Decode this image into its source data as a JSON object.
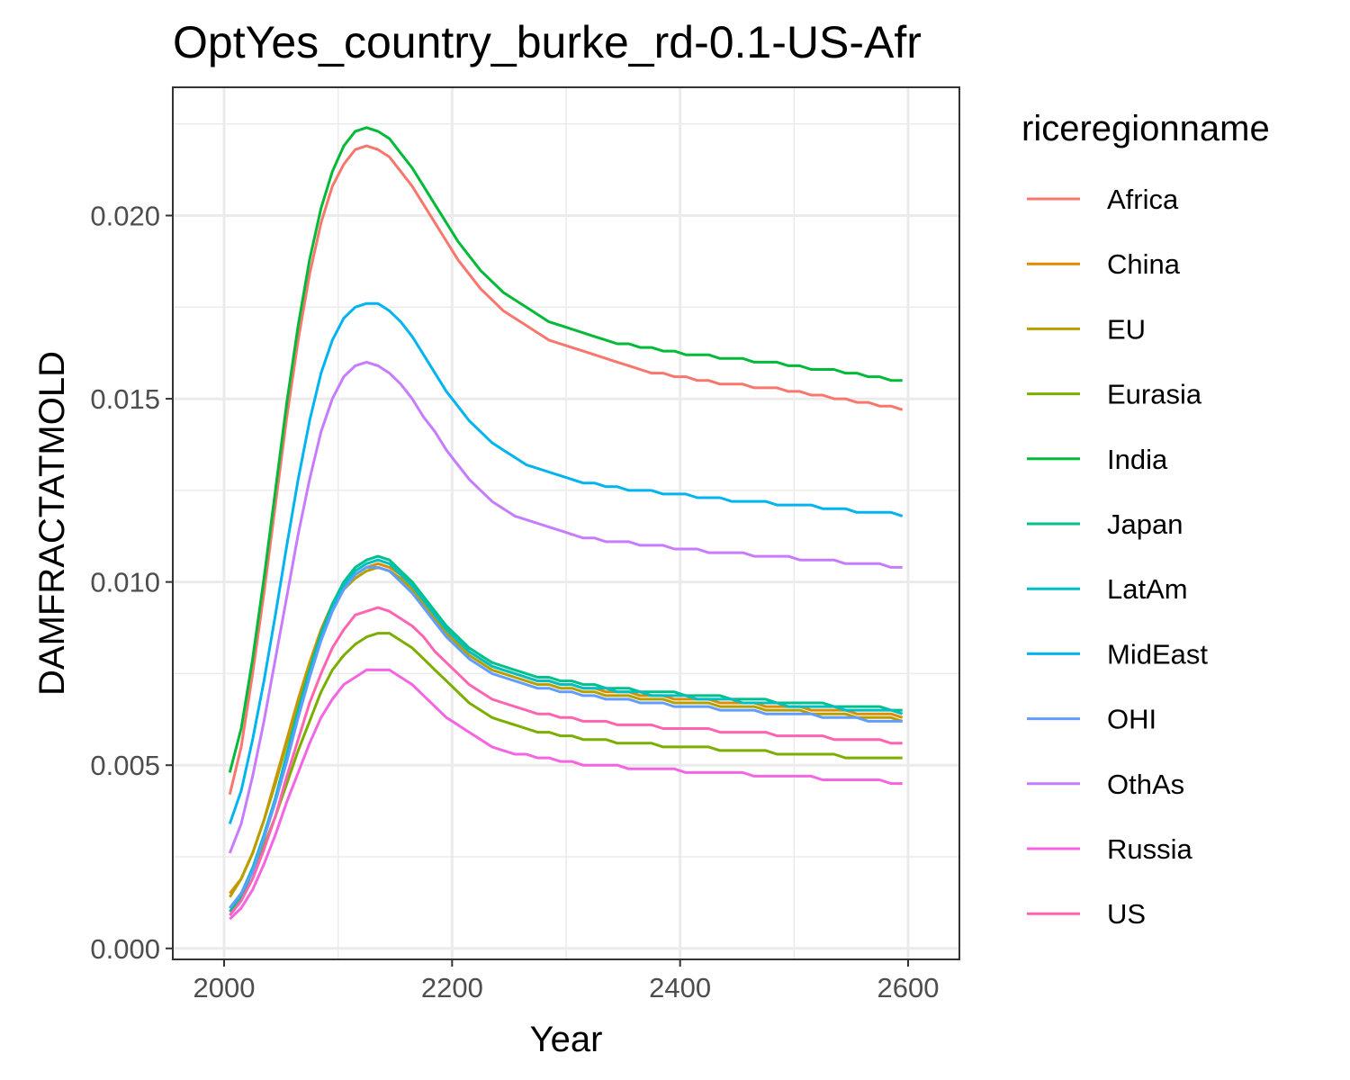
{
  "chart_data": {
    "type": "line",
    "title": "OptYes_country_burke_rd-0.1-US-Afr",
    "xlabel": "Year",
    "ylabel": "DAMFRACTATMOLD",
    "xlim": [
      1955,
      2645
    ],
    "ylim": [
      -0.0003,
      0.0235
    ],
    "x_ticks": [
      2000,
      2200,
      2400,
      2600
    ],
    "x_tick_labels": [
      "2000",
      "2200",
      "2400",
      "2600"
    ],
    "y_ticks": [
      0.0,
      0.005,
      0.01,
      0.015,
      0.02
    ],
    "y_tick_labels": [
      "0.000",
      "0.005",
      "0.010",
      "0.015",
      "0.020"
    ],
    "grid": true,
    "legend": {
      "title": "riceregionname",
      "placement": "right"
    },
    "x": [
      2005,
      2015,
      2025,
      2035,
      2045,
      2055,
      2065,
      2075,
      2085,
      2095,
      2105,
      2115,
      2125,
      2135,
      2145,
      2155,
      2165,
      2175,
      2185,
      2195,
      2205,
      2215,
      2225,
      2235,
      2245,
      2255,
      2265,
      2275,
      2285,
      2295,
      2305,
      2315,
      2325,
      2335,
      2345,
      2355,
      2365,
      2375,
      2385,
      2395,
      2405,
      2415,
      2425,
      2435,
      2445,
      2455,
      2465,
      2475,
      2485,
      2495,
      2505,
      2515,
      2525,
      2535,
      2545,
      2555,
      2565,
      2575,
      2585,
      2595
    ],
    "series": [
      {
        "name": "Africa",
        "color": "#F8766D",
        "values": [
          0.0042,
          0.0055,
          0.0075,
          0.0097,
          0.0121,
          0.0145,
          0.0166,
          0.0184,
          0.0198,
          0.0208,
          0.0214,
          0.0218,
          0.0219,
          0.0218,
          0.0216,
          0.0212,
          0.0208,
          0.0203,
          0.0198,
          0.0193,
          0.0188,
          0.0184,
          0.018,
          0.0177,
          0.0174,
          0.0172,
          0.017,
          0.0168,
          0.0166,
          0.0165,
          0.0164,
          0.0163,
          0.0162,
          0.0161,
          0.016,
          0.0159,
          0.0158,
          0.0157,
          0.0157,
          0.0156,
          0.0156,
          0.0155,
          0.0155,
          0.0154,
          0.0154,
          0.0154,
          0.0153,
          0.0153,
          0.0153,
          0.0152,
          0.0152,
          0.0151,
          0.0151,
          0.015,
          0.015,
          0.0149,
          0.0149,
          0.0148,
          0.0148,
          0.0147
        ]
      },
      {
        "name": "China",
        "color": "#DE8C00",
        "values": [
          0.0015,
          0.0019,
          0.0026,
          0.0035,
          0.0046,
          0.0057,
          0.0068,
          0.0078,
          0.0087,
          0.0094,
          0.0099,
          0.0102,
          0.0104,
          0.0105,
          0.0104,
          0.0102,
          0.0099,
          0.0095,
          0.0091,
          0.0087,
          0.0084,
          0.0081,
          0.0079,
          0.0077,
          0.0076,
          0.0075,
          0.0074,
          0.0073,
          0.0073,
          0.0072,
          0.0072,
          0.0071,
          0.0071,
          0.007,
          0.007,
          0.007,
          0.0069,
          0.0069,
          0.0069,
          0.0068,
          0.0068,
          0.0068,
          0.0068,
          0.0067,
          0.0067,
          0.0067,
          0.0067,
          0.0066,
          0.0066,
          0.0066,
          0.0066,
          0.0065,
          0.0065,
          0.0065,
          0.0065,
          0.0064,
          0.0064,
          0.0064,
          0.0064,
          0.0063
        ]
      },
      {
        "name": "EU",
        "color": "#B79F00",
        "values": [
          0.0014,
          0.0019,
          0.0026,
          0.0035,
          0.0045,
          0.0056,
          0.0067,
          0.0077,
          0.0086,
          0.0093,
          0.0098,
          0.0101,
          0.0103,
          0.0104,
          0.0103,
          0.0101,
          0.0098,
          0.0094,
          0.009,
          0.0086,
          0.0083,
          0.008,
          0.0078,
          0.0076,
          0.0075,
          0.0074,
          0.0073,
          0.0072,
          0.0072,
          0.0071,
          0.0071,
          0.007,
          0.007,
          0.0069,
          0.0069,
          0.0069,
          0.0068,
          0.0068,
          0.0068,
          0.0067,
          0.0067,
          0.0067,
          0.0067,
          0.0066,
          0.0066,
          0.0066,
          0.0066,
          0.0065,
          0.0065,
          0.0065,
          0.0065,
          0.0064,
          0.0064,
          0.0064,
          0.0064,
          0.0063,
          0.0063,
          0.0063,
          0.0063,
          0.0062
        ]
      },
      {
        "name": "Eurasia",
        "color": "#7CAE00",
        "values": [
          0.0011,
          0.0015,
          0.0021,
          0.0028,
          0.0036,
          0.0045,
          0.0054,
          0.0062,
          0.007,
          0.0076,
          0.008,
          0.0083,
          0.0085,
          0.0086,
          0.0086,
          0.0084,
          0.0082,
          0.0079,
          0.0076,
          0.0073,
          0.007,
          0.0067,
          0.0065,
          0.0063,
          0.0062,
          0.0061,
          0.006,
          0.0059,
          0.0059,
          0.0058,
          0.0058,
          0.0057,
          0.0057,
          0.0057,
          0.0056,
          0.0056,
          0.0056,
          0.0056,
          0.0055,
          0.0055,
          0.0055,
          0.0055,
          0.0055,
          0.0054,
          0.0054,
          0.0054,
          0.0054,
          0.0054,
          0.0053,
          0.0053,
          0.0053,
          0.0053,
          0.0053,
          0.0053,
          0.0052,
          0.0052,
          0.0052,
          0.0052,
          0.0052,
          0.0052
        ]
      },
      {
        "name": "India",
        "color": "#00BA38",
        "values": [
          0.0048,
          0.006,
          0.0079,
          0.0101,
          0.0125,
          0.0149,
          0.017,
          0.0188,
          0.0202,
          0.0212,
          0.0219,
          0.0223,
          0.0224,
          0.0223,
          0.0221,
          0.0217,
          0.0213,
          0.0208,
          0.0203,
          0.0198,
          0.0193,
          0.0189,
          0.0185,
          0.0182,
          0.0179,
          0.0177,
          0.0175,
          0.0173,
          0.0171,
          0.017,
          0.0169,
          0.0168,
          0.0167,
          0.0166,
          0.0165,
          0.0165,
          0.0164,
          0.0164,
          0.0163,
          0.0163,
          0.0162,
          0.0162,
          0.0162,
          0.0161,
          0.0161,
          0.0161,
          0.016,
          0.016,
          0.016,
          0.0159,
          0.0159,
          0.0158,
          0.0158,
          0.0158,
          0.0157,
          0.0157,
          0.0156,
          0.0156,
          0.0155,
          0.0155
        ]
      },
      {
        "name": "Japan",
        "color": "#00C08B",
        "values": [
          0.001,
          0.0014,
          0.0021,
          0.003,
          0.0041,
          0.0053,
          0.0065,
          0.0076,
          0.0086,
          0.0094,
          0.01,
          0.0104,
          0.0106,
          0.0107,
          0.0106,
          0.0103,
          0.01,
          0.0096,
          0.0092,
          0.0088,
          0.0085,
          0.0082,
          0.008,
          0.0078,
          0.0077,
          0.0076,
          0.0075,
          0.0074,
          0.0074,
          0.0073,
          0.0073,
          0.0072,
          0.0072,
          0.0071,
          0.0071,
          0.0071,
          0.007,
          0.007,
          0.007,
          0.007,
          0.0069,
          0.0069,
          0.0069,
          0.0069,
          0.0068,
          0.0068,
          0.0068,
          0.0068,
          0.0067,
          0.0067,
          0.0067,
          0.0067,
          0.0067,
          0.0066,
          0.0066,
          0.0066,
          0.0066,
          0.0066,
          0.0065,
          0.0065
        ]
      },
      {
        "name": "LatAm",
        "color": "#00BFC4",
        "values": [
          0.0011,
          0.0015,
          0.0022,
          0.0031,
          0.0041,
          0.0053,
          0.0064,
          0.0075,
          0.0085,
          0.0093,
          0.0099,
          0.0103,
          0.0105,
          0.0106,
          0.0105,
          0.0102,
          0.0099,
          0.0095,
          0.0091,
          0.0087,
          0.0084,
          0.0081,
          0.0079,
          0.0077,
          0.0076,
          0.0075,
          0.0074,
          0.0073,
          0.0073,
          0.0072,
          0.0072,
          0.0071,
          0.0071,
          0.0071,
          0.007,
          0.007,
          0.007,
          0.0069,
          0.0069,
          0.0069,
          0.0069,
          0.0068,
          0.0068,
          0.0068,
          0.0068,
          0.0067,
          0.0067,
          0.0067,
          0.0067,
          0.0066,
          0.0066,
          0.0066,
          0.0066,
          0.0066,
          0.0065,
          0.0065,
          0.0065,
          0.0065,
          0.0065,
          0.0064
        ]
      },
      {
        "name": "MidEast",
        "color": "#00B4EF",
        "values": [
          0.0034,
          0.0043,
          0.0057,
          0.0073,
          0.0091,
          0.011,
          0.0128,
          0.0144,
          0.0157,
          0.0166,
          0.0172,
          0.0175,
          0.0176,
          0.0176,
          0.0174,
          0.0171,
          0.0167,
          0.0162,
          0.0157,
          0.0152,
          0.0148,
          0.0144,
          0.0141,
          0.0138,
          0.0136,
          0.0134,
          0.0132,
          0.0131,
          0.013,
          0.0129,
          0.0128,
          0.0127,
          0.0127,
          0.0126,
          0.0126,
          0.0125,
          0.0125,
          0.0125,
          0.0124,
          0.0124,
          0.0124,
          0.0123,
          0.0123,
          0.0123,
          0.0122,
          0.0122,
          0.0122,
          0.0122,
          0.0121,
          0.0121,
          0.0121,
          0.0121,
          0.012,
          0.012,
          0.012,
          0.0119,
          0.0119,
          0.0119,
          0.0119,
          0.0118
        ]
      },
      {
        "name": "OHI",
        "color": "#619CFF",
        "values": [
          0.0011,
          0.0015,
          0.0021,
          0.003,
          0.004,
          0.0051,
          0.0063,
          0.0074,
          0.0084,
          0.0092,
          0.0098,
          0.0102,
          0.0104,
          0.0104,
          0.0103,
          0.01,
          0.0097,
          0.0093,
          0.0089,
          0.0085,
          0.0082,
          0.0079,
          0.0077,
          0.0075,
          0.0074,
          0.0073,
          0.0072,
          0.0071,
          0.0071,
          0.007,
          0.007,
          0.0069,
          0.0069,
          0.0068,
          0.0068,
          0.0068,
          0.0067,
          0.0067,
          0.0067,
          0.0066,
          0.0066,
          0.0066,
          0.0066,
          0.0065,
          0.0065,
          0.0065,
          0.0065,
          0.0064,
          0.0064,
          0.0064,
          0.0064,
          0.0064,
          0.0063,
          0.0063,
          0.0063,
          0.0063,
          0.0062,
          0.0062,
          0.0062,
          0.0062
        ]
      },
      {
        "name": "OthAs",
        "color": "#C77CFF",
        "values": [
          0.0026,
          0.0034,
          0.0047,
          0.0062,
          0.0079,
          0.0096,
          0.0113,
          0.0128,
          0.0141,
          0.015,
          0.0156,
          0.0159,
          0.016,
          0.0159,
          0.0157,
          0.0154,
          0.015,
          0.0145,
          0.0141,
          0.0136,
          0.0132,
          0.0128,
          0.0125,
          0.0122,
          0.012,
          0.0118,
          0.0117,
          0.0116,
          0.0115,
          0.0114,
          0.0113,
          0.0112,
          0.0112,
          0.0111,
          0.0111,
          0.0111,
          0.011,
          0.011,
          0.011,
          0.0109,
          0.0109,
          0.0109,
          0.0108,
          0.0108,
          0.0108,
          0.0108,
          0.0107,
          0.0107,
          0.0107,
          0.0107,
          0.0106,
          0.0106,
          0.0106,
          0.0106,
          0.0105,
          0.0105,
          0.0105,
          0.0105,
          0.0104,
          0.0104
        ]
      },
      {
        "name": "Russia",
        "color": "#F564E3",
        "values": [
          0.0008,
          0.0011,
          0.0016,
          0.0023,
          0.0031,
          0.004,
          0.0048,
          0.0056,
          0.0063,
          0.0068,
          0.0072,
          0.0074,
          0.0076,
          0.0076,
          0.0076,
          0.0074,
          0.0072,
          0.0069,
          0.0066,
          0.0063,
          0.0061,
          0.0059,
          0.0057,
          0.0055,
          0.0054,
          0.0053,
          0.0053,
          0.0052,
          0.0052,
          0.0051,
          0.0051,
          0.005,
          0.005,
          0.005,
          0.005,
          0.0049,
          0.0049,
          0.0049,
          0.0049,
          0.0049,
          0.0048,
          0.0048,
          0.0048,
          0.0048,
          0.0048,
          0.0048,
          0.0047,
          0.0047,
          0.0047,
          0.0047,
          0.0047,
          0.0047,
          0.0046,
          0.0046,
          0.0046,
          0.0046,
          0.0046,
          0.0046,
          0.0045,
          0.0045
        ]
      },
      {
        "name": "US",
        "color": "#FF64B0",
        "values": [
          0.0009,
          0.0013,
          0.0019,
          0.0027,
          0.0036,
          0.0047,
          0.0057,
          0.0067,
          0.0075,
          0.0082,
          0.0087,
          0.0091,
          0.0092,
          0.0093,
          0.0092,
          0.009,
          0.0088,
          0.0085,
          0.0081,
          0.0078,
          0.0075,
          0.0072,
          0.007,
          0.0068,
          0.0067,
          0.0066,
          0.0065,
          0.0064,
          0.0064,
          0.0063,
          0.0063,
          0.0062,
          0.0062,
          0.0062,
          0.0061,
          0.0061,
          0.0061,
          0.0061,
          0.006,
          0.006,
          0.006,
          0.006,
          0.006,
          0.0059,
          0.0059,
          0.0059,
          0.0059,
          0.0059,
          0.0058,
          0.0058,
          0.0058,
          0.0058,
          0.0058,
          0.0057,
          0.0057,
          0.0057,
          0.0057,
          0.0057,
          0.0056,
          0.0056
        ]
      }
    ]
  }
}
